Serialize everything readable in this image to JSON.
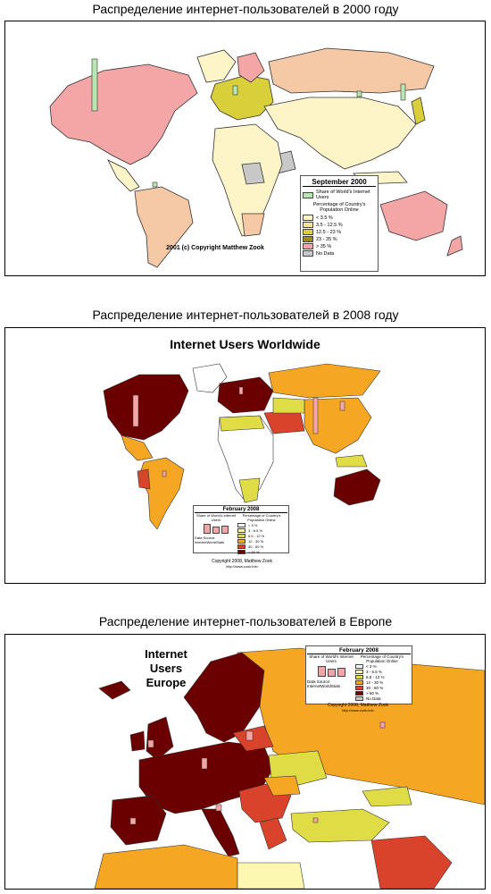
{
  "maps": [
    {
      "caption": "Распределение интернет-пользователей в 2000 году",
      "legend": {
        "title": "September 2000",
        "share_label": "Share of World's Internet Users",
        "pct_heading": "Percentage of Country's Population Online",
        "classes": [
          {
            "label": "< 3.5 %",
            "color": "#fdf5c8"
          },
          {
            "label": "3.5 - 12.5 %",
            "color": "#f5e39a"
          },
          {
            "label": "12.5 - 23 %",
            "color": "#d9cf3a"
          },
          {
            "label": "23 - 35 %",
            "color": "#9a8c1e"
          },
          {
            "label": "> 35 %",
            "color": "#f4a6a6"
          },
          {
            "label": "No Data",
            "color": "#c8c8c8"
          }
        ]
      },
      "copyright": "2001 (c) Copyright Matthew Zook",
      "colors": {
        "bar": "#b8e6b0",
        "ocean": "#ffffff",
        "na": "#f4a6a6",
        "ru": "#f5c9a6",
        "low": "#fdf5c8"
      }
    },
    {
      "caption": "Распределение интернет-пользователей в 2008 году",
      "title": "Internet Users Worldwide",
      "legend": {
        "title": "February 2008",
        "share_label": "Share of World's Internet Users",
        "pct_heading": "Percentage of Country's Population Online",
        "data_source": "Data Source: InternetWorldStats",
        "classes": [
          {
            "label": "< 3 %",
            "color": "#ffffff"
          },
          {
            "label": "3 - 6.5 %",
            "color": "#fcf7b0"
          },
          {
            "label": "6.5 - 12 %",
            "color": "#e0dc46"
          },
          {
            "label": "12 - 30 %",
            "color": "#f5a623"
          },
          {
            "label": "30 - 60 %",
            "color": "#d9432c"
          },
          {
            "label": "> 60 %",
            "color": "#6b0000"
          }
        ]
      },
      "copyright": "Copyright 2008, Matthew Zook",
      "copyright_url": "http://www.zook.info",
      "colors": {
        "bar": "#f4a6a6",
        "dark": "#6b0000",
        "orange": "#f5a623",
        "red": "#d9432c",
        "yellow": "#e0dc46",
        "white": "#ffffff"
      }
    },
    {
      "caption": "Распределение интернет-пользователей в Европе",
      "title_lines": [
        "Internet",
        "Users",
        "Europe"
      ],
      "legend": {
        "title": "February 2008",
        "share_label": "Share of World's Internet Users",
        "pct_heading": "Percentage of Country's Population Online",
        "data_source": "Data Source: InternetWorldStats",
        "classes": [
          {
            "label": "< 3 %",
            "color": "#ffffff"
          },
          {
            "label": "3 - 6.5 %",
            "color": "#fcf7b0"
          },
          {
            "label": "6.5 - 12 %",
            "color": "#e0dc46"
          },
          {
            "label": "12 - 30 %",
            "color": "#f5a623"
          },
          {
            "label": "30 - 60 %",
            "color": "#d9432c"
          },
          {
            "label": "> 60 %",
            "color": "#6b0000"
          },
          {
            "label": "No Data",
            "color": "#c8c8c8"
          }
        ]
      },
      "copyright": "Copyright 2008, Matthew Zook",
      "copyright_url": "http://www.zook.info",
      "colors": {
        "bar": "#f4a6a6",
        "dark": "#6b0000",
        "orange": "#f5a623",
        "red": "#d9432c",
        "yellow": "#e0dc46"
      }
    }
  ]
}
